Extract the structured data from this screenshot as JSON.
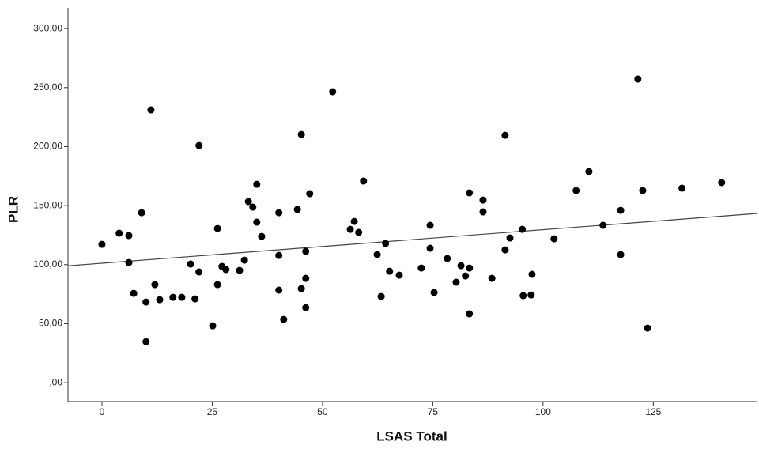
{
  "chart_data": {
    "type": "scatter",
    "x_label": "LSAS Total",
    "y_label": "PLR",
    "xlim": [
      -7.7,
      148.6
    ],
    "ylim": [
      -16,
      317.5
    ],
    "xticks": [
      0,
      25,
      50,
      75,
      100,
      125
    ],
    "yticks": [
      {
        "value": 0,
        "label": ",00"
      },
      {
        "value": 50,
        "label": "50,00"
      },
      {
        "value": 100,
        "label": "100,00"
      },
      {
        "value": 150,
        "label": "150,00"
      },
      {
        "value": 200,
        "label": "200,00"
      },
      {
        "value": 250,
        "label": "250,00"
      },
      {
        "value": 300,
        "label": "300,00"
      }
    ],
    "color": "#000000",
    "fit_line": {
      "x": [
        -7.7,
        148.6
      ],
      "y": [
        99,
        143.4
      ],
      "color": "#444444"
    },
    "x": [
      0,
      3.9,
      6.1,
      6.1,
      7.2,
      9.0,
      10.0,
      10.0,
      11.1,
      12.0,
      13.1,
      16.1,
      18.1,
      20.1,
      21.1,
      22.0,
      22.0,
      25.1,
      26.2,
      26.2,
      27.2,
      28.1,
      31.2,
      32.3,
      33.2,
      34.2,
      35.1,
      35.1,
      36.2,
      40.1,
      40.1,
      40.1,
      41.2,
      44.3,
      45.2,
      45.2,
      46.2,
      46.2,
      46.2,
      47.1,
      52.3,
      56.3,
      57.2,
      58.2,
      59.3,
      62.4,
      63.3,
      64.3,
      65.2,
      67.4,
      72.4,
      74.4,
      74.4,
      75.3,
      78.3,
      80.3,
      81.4,
      82.4,
      83.3,
      83.3,
      83.3,
      86.4,
      86.4,
      88.4,
      91.4,
      91.4,
      92.5,
      95.3,
      95.5,
      97.3,
      97.5,
      102.5,
      107.5,
      110.4,
      113.6,
      117.6,
      117.6,
      121.5,
      122.6,
      123.7,
      131.5,
      140.5
    ],
    "values": [
      117.2,
      126.6,
      124.6,
      101.8,
      75.7,
      144.0,
      68.3,
      34.8,
      231.1,
      83.1,
      70.3,
      72.3,
      72.3,
      100.5,
      71.0,
      200.9,
      93.8,
      48.2,
      130.6,
      83.1,
      98.5,
      95.8,
      95.1,
      103.8,
      153.4,
      148.7,
      168.1,
      136.0,
      123.9,
      144.0,
      107.8,
      78.4,
      53.6,
      146.7,
      210.3,
      79.7,
      111.2,
      88.4,
      63.6,
      160.1,
      246.5,
      129.9,
      136.6,
      127.3,
      170.8,
      108.5,
      73.0,
      117.9,
      94.4,
      91.1,
      97.1,
      133.3,
      113.9,
      76.4,
      105.2,
      85.1,
      99.1,
      90.4,
      160.8,
      97.1,
      58.3,
      154.7,
      144.7,
      88.4,
      209.6,
      112.5,
      122.6,
      129.9,
      73.7,
      74.3,
      91.8,
      121.9,
      162.8,
      178.8,
      133.3,
      146.0,
      108.5,
      257.2,
      162.8,
      46.2,
      164.8,
      169.5
    ]
  }
}
